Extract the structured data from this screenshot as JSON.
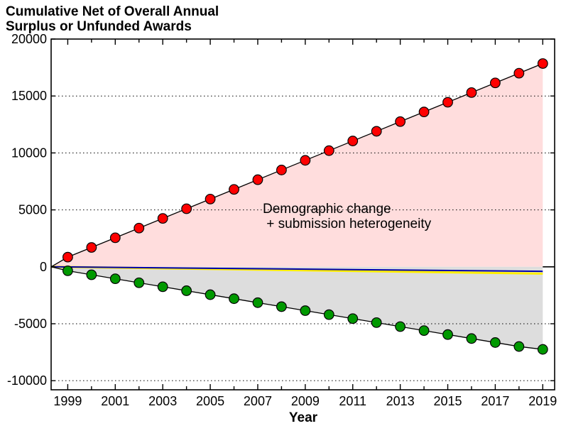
{
  "chart_data": {
    "type": "line",
    "title_lines": [
      "Cumulative Net of Overall Annual",
      "Surplus or Unfunded Awards"
    ],
    "xlabel": "Year",
    "ylabel": "",
    "xlim": [
      1998.3,
      2019.5
    ],
    "ylim": [
      -10800,
      20000
    ],
    "y_ticks": [
      20000,
      15000,
      10000,
      5000,
      0,
      -5000,
      -10000
    ],
    "x_ticks": [
      1999,
      2001,
      2003,
      2005,
      2007,
      2009,
      2011,
      2013,
      2015,
      2017,
      2019
    ],
    "grid": "horizontal-dotted",
    "annotation_lines": [
      "Demographic change",
      " + submission heterogeneity"
    ],
    "series": [
      {
        "name": "surplus",
        "color": "#ff0000",
        "fill": "#ffdddd",
        "x": [
          1999,
          2000,
          2001,
          2002,
          2003,
          2004,
          2005,
          2006,
          2007,
          2008,
          2009,
          2010,
          2011,
          2012,
          2013,
          2014,
          2015,
          2016,
          2017,
          2018,
          2019
        ],
        "values": [
          850,
          1700,
          2550,
          3400,
          4250,
          5100,
          5950,
          6800,
          7650,
          8500,
          9350,
          10200,
          11050,
          11900,
          12750,
          13600,
          14450,
          15300,
          16150,
          17000,
          17850
        ]
      },
      {
        "name": "unfunded",
        "color": "#009900",
        "fill": "#dddddd",
        "x": [
          1999,
          2000,
          2001,
          2002,
          2003,
          2004,
          2005,
          2006,
          2007,
          2008,
          2009,
          2010,
          2011,
          2012,
          2013,
          2014,
          2015,
          2016,
          2017,
          2018,
          2019
        ],
        "values": [
          -350,
          -700,
          -1050,
          -1400,
          -1750,
          -2100,
          -2450,
          -2800,
          -3150,
          -3500,
          -3850,
          -4200,
          -4550,
          -4900,
          -5250,
          -5600,
          -5950,
          -6300,
          -6650,
          -7000,
          -7250
        ]
      },
      {
        "name": "blue-line",
        "color": "#0000aa",
        "x": [
          1998.3,
          2019
        ],
        "values": [
          0,
          -400
        ]
      },
      {
        "name": "yellow-line",
        "color": "#ffee00",
        "x": [
          1998.3,
          2019
        ],
        "values": [
          0,
          -600
        ]
      }
    ]
  }
}
